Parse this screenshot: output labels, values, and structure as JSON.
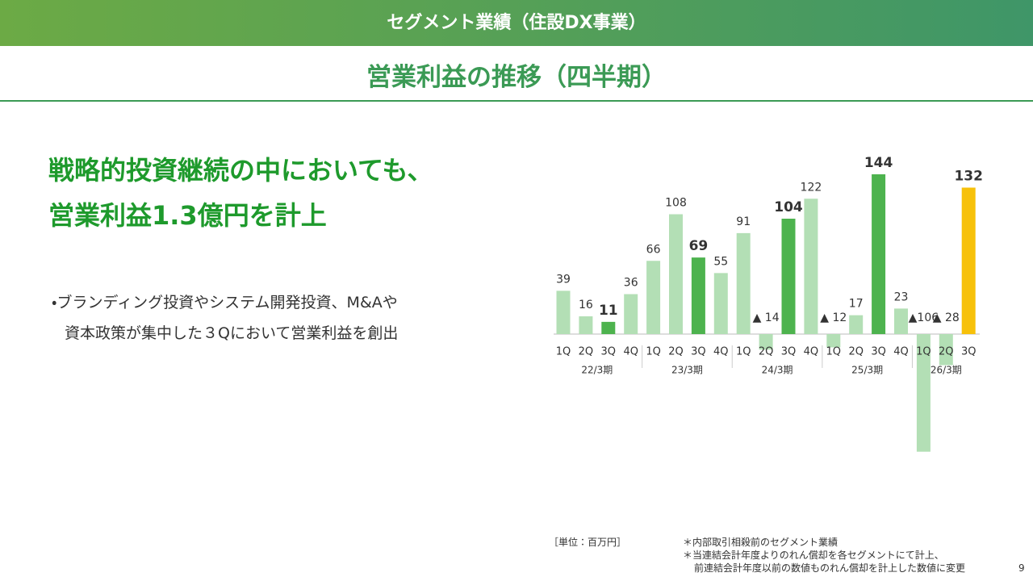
{
  "header": {
    "title": "セグメント業績（住設DX事業）",
    "subtitle": "営業利益の推移（四半期）"
  },
  "headline": [
    "戦略的投資継続の中においても、",
    "営業利益1.3億円を計上"
  ],
  "bullet": [
    "・ブランディング投資やシステム開発投資、M&Aや",
    "資本政策が集中した３Qにおいて営業利益を創出"
  ],
  "unit_note": "［単位：百万円］",
  "notes": [
    "＊内部取引相殺前のセグメント業績",
    "＊当連結会計年度よりのれん償却を各セグメントにて計上、",
    "前連結会計年度以前の数値ものれん償却を計上した数値に変更"
  ],
  "page_number": "9",
  "chart_data": {
    "type": "bar",
    "categories": [
      "1Q",
      "2Q",
      "3Q",
      "4Q",
      "1Q",
      "2Q",
      "3Q",
      "4Q",
      "1Q",
      "2Q",
      "3Q",
      "4Q",
      "1Q",
      "2Q",
      "3Q",
      "4Q",
      "1Q",
      "2Q",
      "3Q"
    ],
    "category_groups": [
      "22/3期",
      "22/3期",
      "22/3期",
      "22/3期",
      "23/3期",
      "23/3期",
      "23/3期",
      "23/3期",
      "24/3期",
      "24/3期",
      "24/3期",
      "24/3期",
      "25/3期",
      "25/3期",
      "25/3期",
      "25/3期",
      "26/3期",
      "26/3期",
      "26/3期"
    ],
    "values": [
      39,
      16,
      11,
      36,
      66,
      108,
      69,
      55,
      91,
      -14,
      104,
      122,
      -12,
      17,
      144,
      23,
      -106,
      -28,
      132
    ],
    "value_labels": [
      "39",
      "16",
      "11",
      "36",
      "66",
      "108",
      "69",
      "55",
      "91",
      "▲ 14",
      "104",
      "122",
      "▲ 12",
      "17",
      "144",
      "23",
      "▲106",
      "▲ 28",
      "132"
    ],
    "colors": [
      "#b3dfb5",
      "#b3dfb5",
      "#4db34e",
      "#b3dfb5",
      "#b3dfb5",
      "#b3dfb5",
      "#4db34e",
      "#b3dfb5",
      "#b3dfb5",
      "#b3dfb5",
      "#4db34e",
      "#b3dfb5",
      "#b3dfb5",
      "#b3dfb5",
      "#4db34e",
      "#b3dfb5",
      "#b3dfb5",
      "#b3dfb5",
      "#f7c10a"
    ],
    "ylim": [
      -110,
      150
    ]
  }
}
